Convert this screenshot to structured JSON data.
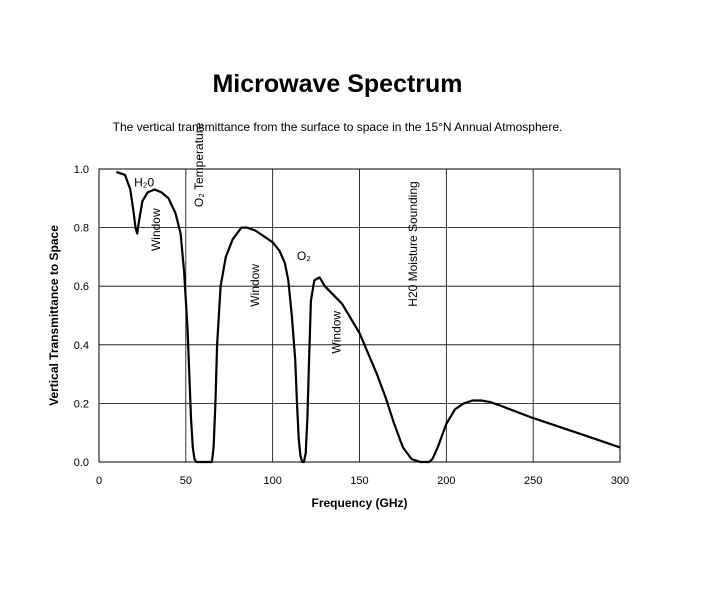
{
  "chart_data": {
    "type": "line",
    "title": "Microwave Spectrum",
    "subtitle": "The vertical transmittance from the surface to space in the 15°N Annual Atmosphere.",
    "xlabel": "Frequency (GHz)",
    "ylabel": "Vertical Transmittance to Space",
    "xlim": [
      0,
      300
    ],
    "ylim": [
      0,
      1
    ],
    "xticks": [
      0,
      50,
      100,
      150,
      200,
      250,
      300
    ],
    "yticks": [
      "0.0",
      "0.2",
      "0.4",
      "0.6",
      "0.8",
      "1.0"
    ],
    "grid": true,
    "series": [
      {
        "x": [
          10,
          15,
          18,
          20,
          21,
          22,
          23,
          25,
          28,
          32,
          36,
          40,
          44,
          47,
          49,
          51,
          52,
          53,
          54,
          55,
          56,
          57,
          58,
          59,
          60,
          61,
          62,
          63,
          64,
          65,
          66,
          67,
          68,
          70,
          73,
          77,
          82,
          85,
          90,
          95,
          100,
          104,
          107,
          109,
          111,
          113,
          114,
          115,
          116,
          117,
          118,
          119,
          120,
          121,
          122,
          124,
          127,
          130,
          140,
          150,
          160,
          165,
          170,
          175,
          180,
          185,
          190,
          192,
          195,
          200,
          205,
          210,
          215,
          220,
          225,
          230,
          250,
          280,
          300
        ],
        "y": [
          0.99,
          0.98,
          0.93,
          0.85,
          0.8,
          0.78,
          0.82,
          0.89,
          0.92,
          0.93,
          0.92,
          0.9,
          0.85,
          0.78,
          0.65,
          0.45,
          0.3,
          0.15,
          0.05,
          0.01,
          0.0,
          0.0,
          0.0,
          0.0,
          0.0,
          0.0,
          0.0,
          0.0,
          0.0,
          0.0,
          0.05,
          0.2,
          0.4,
          0.6,
          0.7,
          0.76,
          0.8,
          0.8,
          0.79,
          0.77,
          0.75,
          0.72,
          0.68,
          0.62,
          0.5,
          0.35,
          0.2,
          0.08,
          0.02,
          0.0,
          0.0,
          0.03,
          0.15,
          0.35,
          0.55,
          0.62,
          0.63,
          0.6,
          0.54,
          0.44,
          0.3,
          0.22,
          0.13,
          0.05,
          0.01,
          0.0,
          0.0,
          0.01,
          0.05,
          0.13,
          0.18,
          0.2,
          0.21,
          0.21,
          0.205,
          0.195,
          0.15,
          0.09,
          0.05
        ]
      }
    ],
    "annotations": [
      {
        "text": "H₂0",
        "x": 26,
        "y": 0.94,
        "rotate": 0
      },
      {
        "text": "Window",
        "x": 35,
        "y": 0.72,
        "rotate": -90
      },
      {
        "text": "O₂ Temperature",
        "x": 60,
        "y": 0.87,
        "rotate": -90
      },
      {
        "text": "Window",
        "x": 92,
        "y": 0.53,
        "rotate": -90
      },
      {
        "text": "O₂",
        "x": 118,
        "y": 0.69,
        "rotate": 0
      },
      {
        "text": "Window",
        "x": 139,
        "y": 0.37,
        "rotate": -90
      },
      {
        "text": "H20 Moisture Sounding",
        "x": 183,
        "y": 0.53,
        "rotate": -90
      }
    ]
  }
}
